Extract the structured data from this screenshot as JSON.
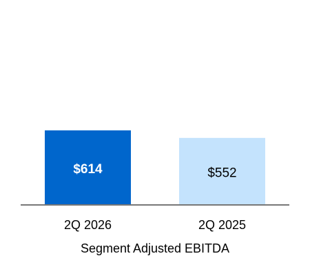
{
  "chart_data": {
    "type": "bar",
    "xlabel": "Segment Adjusted EBITDA",
    "categories": [
      "2Q 2026",
      "2Q 2025"
    ],
    "values": [
      614,
      552
    ],
    "value_labels": [
      "$614",
      "$552"
    ],
    "colors": [
      "#0066cc",
      "#c4e3fd"
    ],
    "ylim": [
      0,
      1500
    ],
    "grid": false
  }
}
